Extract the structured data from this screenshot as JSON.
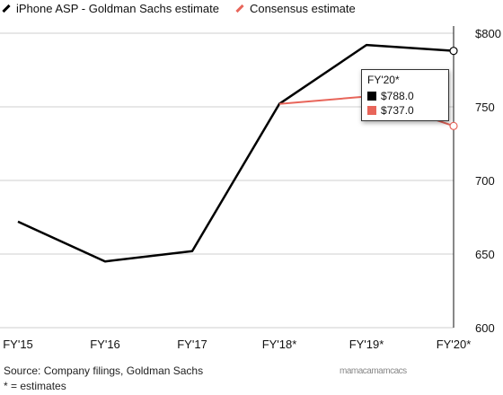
{
  "chart_data": {
    "type": "line",
    "categories": [
      "FY'15",
      "FY'16",
      "FY'17",
      "FY'18*",
      "FY'19*",
      "FY'20*"
    ],
    "ylim": [
      600,
      800
    ],
    "yticks": [
      600,
      650,
      700,
      750,
      800
    ],
    "ytick_labels": [
      "600",
      "650",
      "700",
      "750",
      "$800"
    ],
    "grid": true,
    "series": [
      {
        "name": "iPhone ASP - Goldman Sachs estimate",
        "color": "#000000",
        "values": [
          672,
          645,
          652,
          752,
          792,
          788
        ]
      },
      {
        "name": "Consensus estimate",
        "color": "#e8655a",
        "values": [
          null,
          null,
          null,
          752,
          757,
          737
        ]
      }
    ],
    "legend_position": "top-left"
  },
  "tooltip": {
    "title": "FY'20*",
    "rows": [
      {
        "color": "#000000",
        "value": "$788.0"
      },
      {
        "color": "#e8655a",
        "value": "$737.0"
      }
    ]
  },
  "footer": {
    "source": "Source: Company filings, Goldman Sachs",
    "note": "* = estimates"
  },
  "watermark": "mamacamamcacs"
}
